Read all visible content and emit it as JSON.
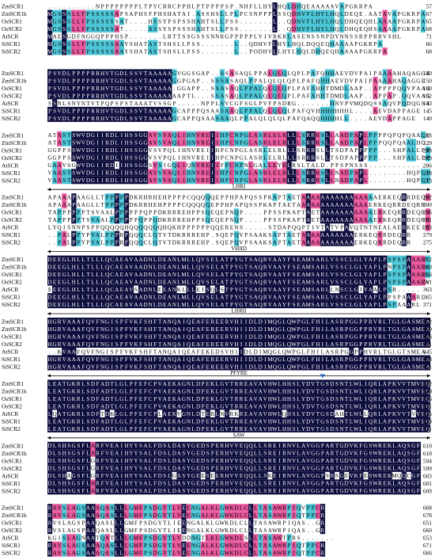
{
  "colors": {
    "identical": "#0d0d3d",
    "similar_pink": "#e8589c",
    "similar_cyan": "#4cc6d6",
    "marker": "#2f6fc4",
    "text_dark": "#000000",
    "text_light": "#ffffff"
  },
  "species": [
    "ZmSCR1",
    "ZmSCR1h",
    "OsSCR1",
    "OsSCR2",
    "AtSCR",
    "SiSCR1",
    "SiSCR2"
  ],
  "marker_icon": "triangle-down-icon",
  "blocks": [
    {
      "end_positions": [
        "57",
        "67",
        "65",
        "68",
        "71",
        "66",
        "68"
      ],
      "motif": null,
      "sequences": [
        "..........NPPPPPPPPLTPYCRRCPPHLPTPPPPSP.NHFLLHYLHQLDHQEAAAAAVAPGKRPA",
        "MGSSSLLFPSSSSSAPSAPHSFPHSHATAI.ASSHSLLPLPCSNPPPLSSQDHVFLHYLHQLDEQE.AATAVAPGKRPA",
        "MGSSSLLFPSSSSSSAT....HSSYPSPSSHAHTSLLPSS.......L..QDHVFLHYLHQLDHQEQHLAAAAPGKRPA",
        "MGSSSLLFPSSSSSAT.....ASSYSPSSSHAHTSLLPSS.......L..QDHVFLHYLHQLDHQEQHSAAAAPGKRPA",
        "MAESGDFNGGQPPPHSP.......LRTTSSGSSSNNRGPPPPPLVIVRKRLASENSSNPDYNNSSRPPRRVSHL",
        "MGSSSLLFPSSSSSAAYSHATASTSHSLLPSS.......L..QDHVFLHYLHQLDQQEQHAAAAPGKRPA",
        "MGSSSLLFPSSSSSAAYSHATASTSHSLLPSS.......L..PODHVLLHYLHQLDHQEQHAAAAPGKRPA"
      ]
    },
    {
      "end_positions": [
        "140",
        "150",
        "130",
        "132",
        "143",
        "145",
        "140"
      ],
      "motif": null,
      "sequences": [
        "PSVDLPPPPRRHVTGDLSSVTAAAAAGVGGSGAP..SSASAQLPPALQLQLQPLPAFQHHAEVDVPAIPAAAAHAQAGGE",
        "PSVDLPPPPRRHVTGDLSSVTAAAAAGGPGAP..SSSASAQLPPALQLQLQPLPAFQHHAEVDVPAIPAAAAHAQAGGE",
        "PSVDLPPPPRRHVTGDLSSVTAAAAA.GGAPP..SSASAQLPPALQLQLQPLPAFAHHTDMDLAAP..APPPPQQVPAAGE",
        "PSVDLPPPPRRHVTGDLSSVTAAAAAAAPTL...SSASAQLPPALQLQLQPLPAFAHHTDMDLAAP..APPAP.QQVAAGE",
        "SSNLSNYNTVTPQPSPSTAAATVSSGP.....NPPLSVCGFSGLPVFPSDRG.......HNVPVMQDQSSAQVPQDQGSSGE",
        "PSVDLPPPPRRHVTGDLSSVTAAAAAGCAPPPQSAASAAQLPPALQLQLQLPAFQVHHHHHHHL....AEVDAPPAGE",
        "PSVDLPPPPRRHVTGDLSSVTAAAAAGCAPPQSAASAAQLPPALQLQLQLPAFQAQQHHHHLL....AEVDAPPAGE"
      ]
    },
    {
      "end_positions": [
        "213",
        "229",
        "208",
        "209",
        "206",
        "218",
        "213"
      ],
      "motif": null,
      "sequences": [
        "ATASTSWVDGIIRDLIHSSGGAVSVAQLIHNVREIIHPCNPGLASRLELRLLLSRRRSLLAADPAPLPPPPQPQPQAALHG..",
        "ATASTSWVDGIIRDLIHSSGGAVSVAQLIHNVREIIHPCNPGLASRLELRLLLSRRRSLLAADPAPLPPPQQPQAALHG.",
        "GGPPSSWVDGIIRDLIHSSGGVSVPQLIHNVREIIHPCNPGLASRLELRLLLSRRRSLLTSDPAPPPPP...SHPALLPPDA",
        "GGPPSSWVDGIIRDLIHSSGGVSVPQLIHNVREIIHPCNPGLASRLELRLLLSRRRSLLTSDPAPPPPP...SHPALLPPDA",
        "GAAVSGWVDGIIRDIIHSSGGSVSIGQLIQNVREIIFPCNPNLGALLEYRLRSLTALD.PPSPNSSS...............",
        "VAASTSWVDGIIRDLIHSSGGAVSVAQLIHNVREIIHPCNPGLASRLELRLLLSRRRSLLNADPAPL........HQPLPHP",
        "VAASTSWVDGIIRDLIHSSGGAVSVAQLIHNVREIIHPCNPGLASRLELRLLLSRRRSLLNADPAPL........HQPLPHP"
      ]
    },
    {
      "end_positions": [
        "292",
        "300",
        "276",
        "281",
        "283",
        "279",
        "275"
      ],
      "motif": {
        "label": "LHRI"
      },
      "sequences": [
        "APAAAPAAGLLTPPPPPDKRHRHEHPPPPCQQQQQEPPHPAPQSSPKAPTAETAAAAAAAAAAAAAAAAERKEQRRDEQRR",
        "APAAAPAAGLLTPPPPPDKRRHEHPPPPCQQQQQEPPHPAPQSSPKAPTAETAAAAAAAAAAAAAAAERKEQRRDEQRR",
        "TAPPPPPPTSVAALPPPPPPQPPDKRRREHPPSQEQEPNQP....PPSSPKAPTAETAAAAAAAAAAAERKEQRRDEQRR",
        "TAPPPPPTSVAALPPPPPPQPPQDKRRREHPPSQEQEPNQP....PPSSPKAPTAETAAAAAAAAAAAERKEQRRDEQRR",
        "LYQISNNPSPPQQQQQHQQQQQQQHQKHPPPPPPQQERENS.....STDAPQQPTIVTATVPAVQTNTNEALAERKEEIRKQKRRD",
        "..PALPPYPVALPPPRPQQQCLQTVTDKRRREHP.SQEPQVPSAAKSAPTAETAAAAAAAAAAAERKEQRRDEQRR",
        "..PALPPYPVALPPPRPQQQCLQTVTDKRRREHP.SQEPQVPSAAKSAPTAETAAAAAAAAAAAERKEQRRDEQRR"
      ]
    },
    {
      "end_positions": [
        "372",
        "380",
        "356",
        "361",
        "363",
        "365",
        "371"
      ],
      "motif": {
        "label": "VHIID"
      },
      "sequences": [
        "DEEGLHLLTLLLQCAEAVAADNLDEANLMLLQVSELATPYGTSAQRVAAYFSEAMSARLVSSCLGLYAPLPSPSPAAARL",
        "DEEGLHLLTLLLQCAEAVAADNLDEANLMLLQVSELATPYGTSAQRVAAYFSEAMSARLVSSCLGLYAPLPNPSPAAARL",
        "DEEGLHLLTLLLQCAEAVAADNLDEANLMLLQVSELATPYGTSAQRVAAYFSEAMSARLVSSCLGLYAPLPSPSPAAARL",
        "DEEGLHLLTLLLQCAEAVAADNLDEANLMLLQVSELATPYGTSAQRVAAYFSEAMSARLVSSCLGLYAPLPSPSPAAARV",
        "EEEGLHLLTLLLQCAEAVSADNLEEANKLLLEISQLSTPYGTSAQRVAAYFSEAMSARLLNSCLGIYAALPSR.....",
        "DEEGLHLLTLLLQCAEAVAADNLDEANLMLLQVSELATPYGTSAQRVAAYFSEAMSARLVSSCLGLYAPLPPSPAAARL",
        "DEEGLHLLTLLLQCAEAVAADNLDEANLMLLQVSELATPYGTSAQRVAAYFSEAMSARLVSSCLGLYAPLPSPAAARL"
      ]
    },
    {
      "end_positions": [
        "452",
        "460",
        "436",
        "441",
        "445",
        "443",
        "451"
      ],
      "motif": {
        "label": "LHRII"
      },
      "sequences": [
        "HGRVAAAFQVFNGISPFVKFSHFTANQAIQEAFEREERVHIIDLDIMQGLQWPGLFHILASRPGGPPRVRLTGLGASMEA",
        "HGRVAAAFQVFNGISPFVKFSHFTANQAIQEAFEREERVHIIDLDIMQGLQWPGLFHILASRPGGPPRVRLTGLGASMEA",
        "HGRVAAAFQVFNGISPFVKFSHFTANQAIQEAFEREERVHIIDLDIMQGLQWPGLFHILASRPGGPPRVRLTGLGASMEA",
        "HGRVAAAFQVFNGISPFVKFSHFTANQAIQEAFEREERVHIIDLDIMQGLQWPGLFHILASRPGGPPRVRLTGLGASMEA",
        "..KVAAFQVFNGISPFVKFSHFTANQAIQEAFEKEDSVHIIDLDIMQGLQWPGLFHILASRPGGPPHVRLTGLGTSMEA",
        "HGRVAAAFQVFNGISPFVKFSHFTANQAIQEAFEREERVHIIDLDIMQGLQWPGLFHILASRPGGPPRVRLTGLGASMEA",
        "HGRVAAAFQVFNGISPFVKFSHFTANQAIQEAFEREERVHIIDLDIMQGLQWPGLFHILASRPGGPPRVRLTGLGASMEA"
      ]
    },
    {
      "end_positions": [
        "532",
        "540",
        "516",
        "521",
        "525",
        "523",
        "531"
      ],
      "motif": {
        "label": "PFYRE",
        "marker_column": 57
      },
      "sequences": [
        "LEATGKRLSDFADTLGLPFEFCPVAEKAGNLDPEKLGVTRREAVAVHWLHHSLYDVTGSDSNTLWLIQRLAPKVVTMVEQ",
        "LEATGKRLSDFADTLGLPFEFCPVAEKAGNLDPEKLGVTRREAVAVHWLHHSLYDVTGSDSNTLWLIQRLAPKVVTMVEQ",
        "LEATGKRLSDFADTLGLPFEFCPVAEKAGNLDPEKLGVTRREAVAVHWLHHSLYDVTGSDSNTLWLIQRLAPKVVTMVEQ",
        "LEATGKRLSDFADTLGLPFEFCPVAEKAGNLDPEKLGVTRREAVAVHWLHHSLYDVTGSDSNTLWLIQRLAPKVVTMVEQ",
        "LQATGKRLSDFTDKLGLPFEFCPLAEKVGNLDTERLNVRKREAVAVHWLQHSLYDVTGSDAHTLWLLQRLAPKVVTVVEQ",
        "LEATGKRLSDFADTLGLPFEFCPVAEKAGNLDPEKLGVTRREAVAVHWLHHSLYDVTGSDSNTLWLIQRLAPKVVTMVEQ",
        "LEATGKRLSDFADTLGLPFEFCPVAEKAGNLDPEKLGVTRREAVAVHWLHHSLYDVTGSDSNTLWLIQRLAPKVVTMVEQ"
      ]
    },
    {
      "end_positions": [
        "610",
        "618",
        "594",
        "599",
        "603",
        "601",
        "609"
      ],
      "motif": {
        "label": "SAW"
      },
      "sequences": [
        "DLSHSGSFLARFVEAIHYYSALFDSLDASYGEDSPERHVVEQQLLSREIRNVLAVGGPARTGDVKFGSWREKLAQSGF",
        "DLSHSGSFLARFVEAIHYYSALFDSLDASYGEDSPERHVVEQQLLSREIRNVLAVGGPARTGDVKFGSWREKLAQSGF",
        "DLSHSGSFLGRFVEAIHYYSALFDSLDASYGEDSPERHVVEQQLLSREIRNVLAVGGPARTGDVKFGSWREKLAQSGF",
        "DLSHSGSFLGRFVEAIHYYSALFDSLDASYGEDSPERHVVEQQLLSREIRNVLAVGGPARTGDVKFGSWREKLAQSGF",
        "DLSHAGSFLGRFVEAIHYYSALFDSLGASYGEESEERHVVEQQLLSKEIRNVLAVGGPSRSGEVKFESWREKMQQCGF",
        "DLSHSGSFLARFVEAIHYYSALFDSLDASYGEDSPERHVVEQQLLSREIRNVLAVGGPARTGDVKFGSWREKLAQSGF",
        "DLSHSGSFLARFVEAIHYYSALFDSLDASYGEDSPERHVVEQQLLSREIRNVLAVGGPARTGDVKFGSWREKLAQSGF"
      ]
    },
    {
      "end_positions": [
        "668",
        "678",
        "651",
        "660",
        "653",
        "671",
        "666"
      ],
      "motif": null,
      "sequences": [
        "RAVSLAGSAAAQASLLLGMFPSDGYTLVEENGALKLGWKDLCLLTASAWRPIQVPPCR",
        "RAVSLAGSAAAQASLLLGMFPSDGYTLVEENGALKLGWKDLCLLTASAWRPIQTPPCR",
        "RVSLAGSPAAQASLLLGMFPSDGYTLIEENGALKLGWKDLCLLTASAWRPIQAS..GR",
        "RVSLAGSPAAQASLLLGMFPSDGYTLIEENGALKLGWKDLCLLTASAWRPIQAS..GR",
        "KGISLAGNAATQATLLLGMFPSDGYTLVDDNGTLKLGWKDLSLLTASAWTPRS.......",
        "RAVSLAGSAAAQASLLLGMFPSDGYTLVEENGALKLGWKDLCLLTASAWRPIQTPPCR",
        "RAVSLAGSAAAQASLLLGMFPSDGYTLVEENGALKLGWKDLCLLTASAWRPIQTPPCR"
      ]
    }
  ]
}
